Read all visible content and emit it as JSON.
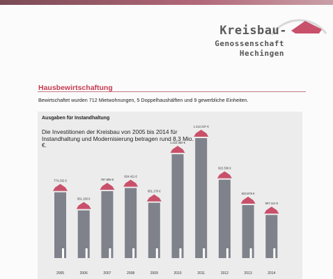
{
  "logo": {
    "line1": "Kreisbau-",
    "line2": "Genossenschaft",
    "line3": "Hechingen"
  },
  "section": {
    "title": "Hausbewirtschaftung",
    "intro": "Bewirtschaftet wurden 712 Mietwohnungen, 5 Doppelhaushälften und 9 gewerbliche Einheiten."
  },
  "panel": {
    "title": "Ausgaben für Instandhaltung",
    "text": "Die Investitionen der Kreisbau von 2005 bis 2014 für Instandhaltung und Modernisierung betragen rund 8,3 Mio. €."
  },
  "colors": {
    "accent": "#c73a50",
    "bar": "#7f818b",
    "roof": "#c9506a"
  },
  "chart_data": {
    "type": "bar",
    "categories": [
      "2005",
      "2006",
      "2007",
      "2008",
      "2009",
      "2010",
      "2011",
      "2012",
      "2013",
      "2014"
    ],
    "values": [
      774232,
      561150,
      787698,
      824411,
      651170,
      1222350,
      1412227,
      922336,
      623679,
      507114
    ],
    "value_labels": [
      "774.232 €",
      "561.150 €",
      "787.698 €",
      "824.411 €",
      "651.170 €",
      "1.222.350 €",
      "1.412.227 €",
      "922.336 €",
      "623.679 €",
      "507.114 €"
    ],
    "title": "Ausgaben für Instandhaltung",
    "xlabel": "",
    "ylabel": "",
    "grid": false
  }
}
